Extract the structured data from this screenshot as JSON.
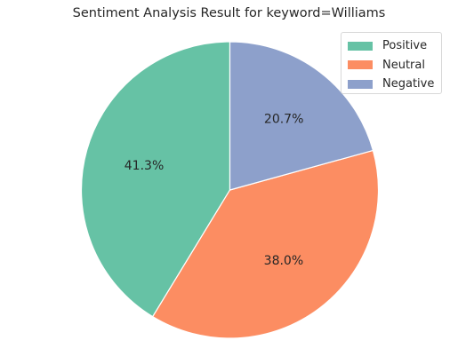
{
  "chart_data": {
    "type": "pie",
    "title": "Sentiment Analysis Result for keyword=Williams",
    "labels": [
      "Positive",
      "Neutral",
      "Negative"
    ],
    "values": [
      41.3,
      38.0,
      20.7
    ],
    "value_labels": [
      "41.3%",
      "38.0%",
      "20.7%"
    ],
    "colors": [
      "#66c2a5",
      "#fc8d62",
      "#8da0cb"
    ],
    "start_angle": 90,
    "direction": "counterclockwise",
    "legend_position": "top-right"
  }
}
